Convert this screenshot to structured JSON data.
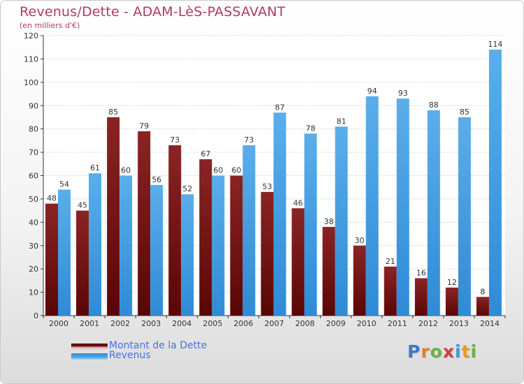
{
  "title": "Revenus/Dette - ADAM-LèS-PASSAVANT",
  "subtitle": "(en milliers d'€)",
  "logo": {
    "letters": [
      "P",
      "r",
      "o",
      "x",
      "i",
      "t",
      "i"
    ],
    "colors": [
      "#3a7ac8",
      "#e0802a",
      "#6ab04c",
      "#d83a3a",
      "#3a9ad8",
      "#e0a020",
      "#6ab04c"
    ]
  },
  "legend": [
    {
      "label": "Montant de la Dette",
      "color": "#7a1010"
    },
    {
      "label": "Revenus",
      "color": "#4aa3e6"
    }
  ],
  "chart_data": {
    "type": "bar",
    "title": "Revenus/Dette - ADAM-LèS-PASSAVANT",
    "ylabel": "",
    "xlabel": "",
    "ylim": [
      0,
      120
    ],
    "yticks": [
      0,
      10,
      20,
      30,
      40,
      50,
      60,
      70,
      80,
      90,
      100,
      110,
      120
    ],
    "grid": true,
    "legend_position": "bottom-left",
    "categories": [
      "2000",
      "2001",
      "2002",
      "2003",
      "2004",
      "2005",
      "2006",
      "2007",
      "2008",
      "2009",
      "2010",
      "2011",
      "2012",
      "2013",
      "2014"
    ],
    "series": [
      {
        "name": "Montant de la Dette",
        "color": "#7a1010",
        "values": [
          48,
          45,
          85,
          79,
          73,
          67,
          60,
          53,
          46,
          38,
          30,
          21,
          16,
          12,
          8
        ]
      },
      {
        "name": "Revenus",
        "color": "#4aa3e6",
        "values": [
          54,
          61,
          60,
          56,
          52,
          60,
          73,
          87,
          78,
          81,
          94,
          93,
          88,
          85,
          114
        ]
      }
    ]
  }
}
